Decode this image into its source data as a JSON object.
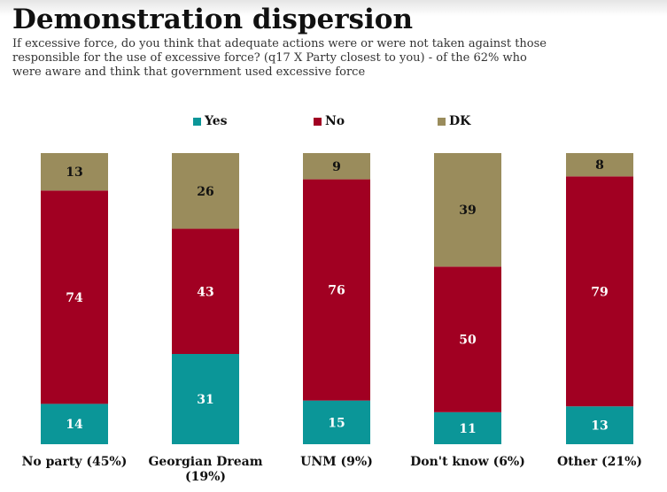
{
  "header": {
    "title": "Demonstration dispersion",
    "subtitle": "If excessive force, do you think that adequate actions were or were not taken against those responsible for the use of excessive force? (q17 X Party closest to you) - of the 62% who were aware and think that government used excessive force"
  },
  "colors": {
    "yes": "#0b9698",
    "no": "#a10022",
    "dk": "#9a8c5c",
    "segment_label_dark": "#111111",
    "segment_label_light": "#ffffff"
  },
  "chart_data": {
    "type": "bar",
    "stacked": true,
    "title": "Demonstration dispersion",
    "categories": [
      "No party (45%)",
      "Georgian Dream (19%)",
      "UNM (9%)",
      "Don't know (6%)",
      "Other (21%)"
    ],
    "series": [
      {
        "name": "Yes",
        "values": [
          14,
          31,
          15,
          11,
          13
        ]
      },
      {
        "name": "No",
        "values": [
          74,
          43,
          76,
          50,
          79
        ]
      },
      {
        "name": "DK",
        "values": [
          13,
          26,
          9,
          39,
          8
        ]
      }
    ],
    "ylim": [
      0,
      100
    ],
    "grid": false,
    "legend": "top",
    "data_labels": true,
    "y_axis_visible": false
  }
}
